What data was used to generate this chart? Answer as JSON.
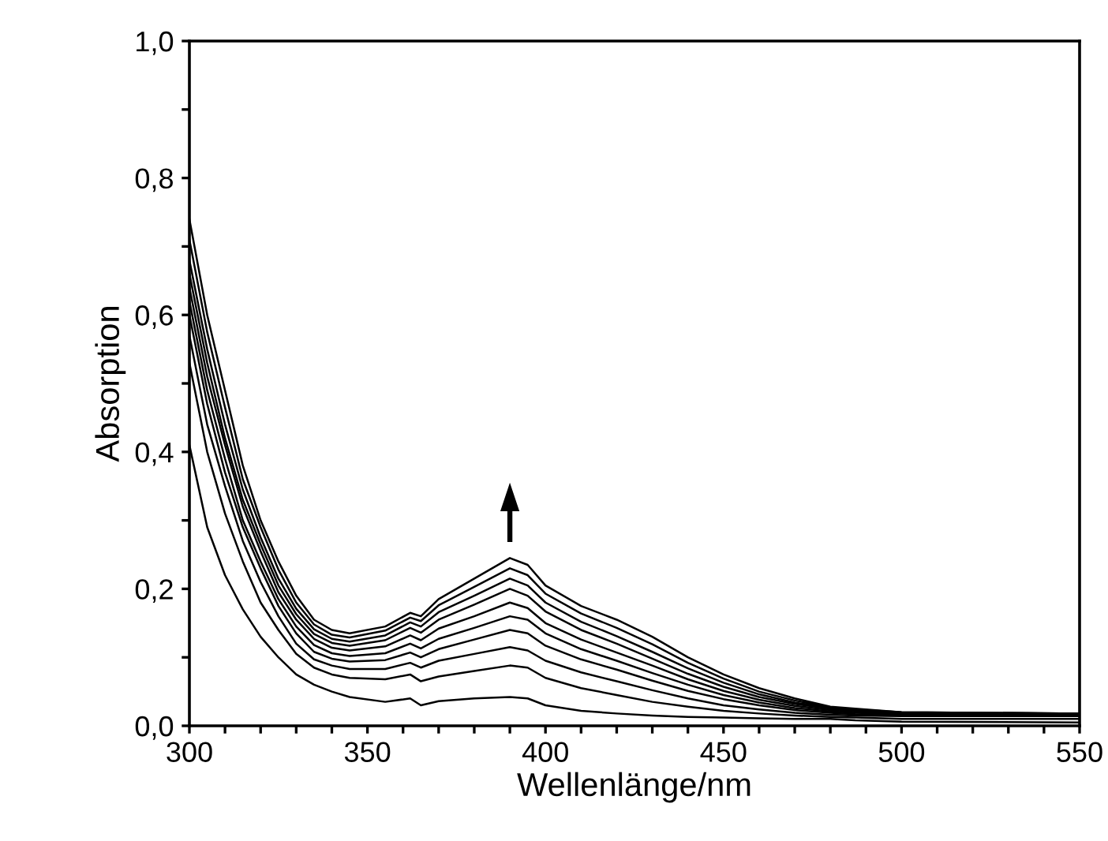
{
  "chart_data": {
    "type": "line",
    "xlabel": "Wellenlänge/nm",
    "ylabel": "Absorption",
    "xlim": [
      300,
      550
    ],
    "ylim": [
      0,
      1.0
    ],
    "xticks": [
      300,
      {
        "value": 310,
        "label": null
      },
      {
        "value": 320,
        "label": null
      },
      {
        "value": 330,
        "label": null
      },
      {
        "value": 340,
        "label": null
      },
      350,
      {
        "value": 360,
        "label": null
      },
      {
        "value": 370,
        "label": null
      },
      {
        "value": 380,
        "label": null
      },
      {
        "value": 390,
        "label": null
      },
      400,
      {
        "value": 410,
        "label": null
      },
      {
        "value": 420,
        "label": null
      },
      {
        "value": 430,
        "label": null
      },
      {
        "value": 440,
        "label": null
      },
      450,
      {
        "value": 460,
        "label": null
      },
      {
        "value": 470,
        "label": null
      },
      {
        "value": 480,
        "label": null
      },
      {
        "value": 490,
        "label": null
      },
      500,
      {
        "value": 510,
        "label": null
      },
      {
        "value": 520,
        "label": null
      },
      {
        "value": 530,
        "label": null
      },
      {
        "value": 540,
        "label": null
      },
      550
    ],
    "yticks": [
      {
        "value": 0,
        "label": "0,0"
      },
      {
        "value": 0.1,
        "label": null
      },
      {
        "value": 0.2,
        "label": "0,2"
      },
      {
        "value": 0.3,
        "label": null
      },
      {
        "value": 0.4,
        "label": "0,4"
      },
      {
        "value": 0.5,
        "label": null
      },
      {
        "value": 0.6,
        "label": "0,6"
      },
      {
        "value": 0.7,
        "label": null
      },
      {
        "value": 0.8,
        "label": "0,8"
      },
      {
        "value": 0.9,
        "label": null
      },
      {
        "value": 1.0,
        "label": "1,0"
      }
    ],
    "grid": false,
    "legend": false,
    "marker": "none",
    "line_style": "solid",
    "x": [
      300,
      305,
      310,
      315,
      320,
      325,
      330,
      335,
      340,
      345,
      355,
      362,
      365,
      370,
      380,
      390,
      395,
      400,
      410,
      420,
      430,
      440,
      450,
      460,
      470,
      480,
      487,
      500,
      550
    ],
    "series": [
      {
        "color": "#000000",
        "values": [
          0.41,
          0.29,
          0.22,
          0.17,
          0.13,
          0.1,
          0.075,
          0.06,
          0.05,
          0.042,
          0.035,
          0.04,
          0.03,
          0.036,
          0.04,
          0.042,
          0.04,
          0.03,
          0.022,
          0.018,
          0.015,
          0.013,
          0.012,
          0.011,
          0.01,
          0.01,
          0.008,
          0.006,
          0.005
        ]
      },
      {
        "color": "#000000",
        "values": [
          0.53,
          0.4,
          0.31,
          0.24,
          0.18,
          0.14,
          0.105,
          0.085,
          0.075,
          0.07,
          0.068,
          0.075,
          0.065,
          0.072,
          0.08,
          0.088,
          0.085,
          0.07,
          0.055,
          0.045,
          0.035,
          0.028,
          0.022,
          0.018,
          0.015,
          0.013,
          0.012,
          0.01,
          0.01
        ]
      },
      {
        "color": "#000000",
        "values": [
          0.57,
          0.44,
          0.35,
          0.27,
          0.21,
          0.16,
          0.12,
          0.097,
          0.088,
          0.083,
          0.083,
          0.092,
          0.085,
          0.095,
          0.105,
          0.115,
          0.11,
          0.095,
          0.078,
          0.065,
          0.052,
          0.04,
          0.03,
          0.024,
          0.019,
          0.016,
          0.015,
          0.014,
          0.014
        ]
      },
      {
        "color": "#000000",
        "values": [
          0.6,
          0.47,
          0.37,
          0.29,
          0.23,
          0.175,
          0.135,
          0.108,
          0.098,
          0.094,
          0.096,
          0.107,
          0.1,
          0.112,
          0.126,
          0.14,
          0.135,
          0.117,
          0.097,
          0.082,
          0.066,
          0.051,
          0.039,
          0.03,
          0.023,
          0.019,
          0.017,
          0.016,
          0.015
        ]
      },
      {
        "color": "#000000",
        "values": [
          0.62,
          0.49,
          0.39,
          0.3,
          0.24,
          0.185,
          0.145,
          0.118,
          0.106,
          0.102,
          0.106,
          0.12,
          0.113,
          0.127,
          0.143,
          0.16,
          0.155,
          0.135,
          0.112,
          0.095,
          0.077,
          0.06,
          0.045,
          0.034,
          0.026,
          0.021,
          0.019,
          0.017,
          0.016
        ]
      },
      {
        "color": "#000000",
        "values": [
          0.64,
          0.51,
          0.41,
          0.32,
          0.255,
          0.195,
          0.155,
          0.127,
          0.114,
          0.11,
          0.116,
          0.132,
          0.125,
          0.142,
          0.16,
          0.18,
          0.172,
          0.15,
          0.126,
          0.107,
          0.088,
          0.068,
          0.051,
          0.038,
          0.029,
          0.023,
          0.021,
          0.018,
          0.017
        ]
      },
      {
        "color": "#000000",
        "values": [
          0.66,
          0.53,
          0.42,
          0.33,
          0.265,
          0.205,
          0.163,
          0.134,
          0.121,
          0.117,
          0.125,
          0.143,
          0.136,
          0.155,
          0.177,
          0.2,
          0.19,
          0.167,
          0.14,
          0.12,
          0.098,
          0.076,
          0.057,
          0.042,
          0.032,
          0.025,
          0.022,
          0.019,
          0.017
        ]
      },
      {
        "color": "#000000",
        "values": [
          0.68,
          0.55,
          0.44,
          0.345,
          0.275,
          0.215,
          0.171,
          0.141,
          0.127,
          0.123,
          0.132,
          0.151,
          0.145,
          0.166,
          0.19,
          0.215,
          0.205,
          0.18,
          0.152,
          0.131,
          0.108,
          0.084,
          0.063,
          0.046,
          0.034,
          0.026,
          0.023,
          0.019,
          0.018
        ]
      },
      {
        "color": "#000000",
        "values": [
          0.71,
          0.575,
          0.465,
          0.36,
          0.29,
          0.228,
          0.18,
          0.148,
          0.133,
          0.129,
          0.139,
          0.158,
          0.153,
          0.176,
          0.203,
          0.23,
          0.22,
          0.193,
          0.164,
          0.143,
          0.119,
          0.092,
          0.069,
          0.05,
          0.037,
          0.027,
          0.024,
          0.02,
          0.018
        ]
      },
      {
        "color": "#000000",
        "values": [
          0.74,
          0.6,
          0.49,
          0.38,
          0.3,
          0.24,
          0.19,
          0.155,
          0.14,
          0.135,
          0.145,
          0.165,
          0.16,
          0.185,
          0.215,
          0.245,
          0.235,
          0.205,
          0.175,
          0.155,
          0.13,
          0.1,
          0.075,
          0.055,
          0.04,
          0.028,
          0.025,
          0.02,
          0.018
        ]
      }
    ]
  }
}
